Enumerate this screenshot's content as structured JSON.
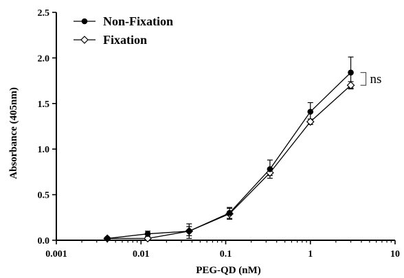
{
  "chart_data": {
    "type": "line",
    "xlabel": "PEG-QD (nM)",
    "ylabel": "Absorbance (405nm)",
    "xscale": "log",
    "xlim": [
      0.001,
      10
    ],
    "ylim": [
      0,
      2.5
    ],
    "x_ticks": [
      "0.001",
      "0.01",
      "0.1",
      "1",
      "10"
    ],
    "y_ticks": [
      "0.0",
      "0.5",
      "1.0",
      "1.5",
      "2.0",
      "2.5"
    ],
    "legend_position": "top-left",
    "series": [
      {
        "name": "Non-Fixation",
        "marker": "filled-circle",
        "x": [
          0.004,
          0.012,
          0.037,
          0.111,
          0.333,
          1,
          3
        ],
        "y": [
          0.02,
          0.07,
          0.1,
          0.3,
          0.78,
          1.41,
          1.84
        ],
        "error": [
          0.01,
          0.03,
          0.05,
          0.06,
          0.1,
          0.1,
          0.17
        ]
      },
      {
        "name": "Fixation",
        "marker": "open-diamond",
        "x": [
          0.004,
          0.012,
          0.037,
          0.111,
          0.333,
          1,
          3
        ],
        "y": [
          0.02,
          0.02,
          0.1,
          0.29,
          0.74,
          1.3,
          1.7
        ],
        "error": [
          0.01,
          0.01,
          0.08,
          0.06,
          0.03,
          0.03,
          0.04
        ]
      }
    ],
    "annotations": [
      {
        "text": "ns",
        "between_series_at_x": 3
      }
    ]
  }
}
